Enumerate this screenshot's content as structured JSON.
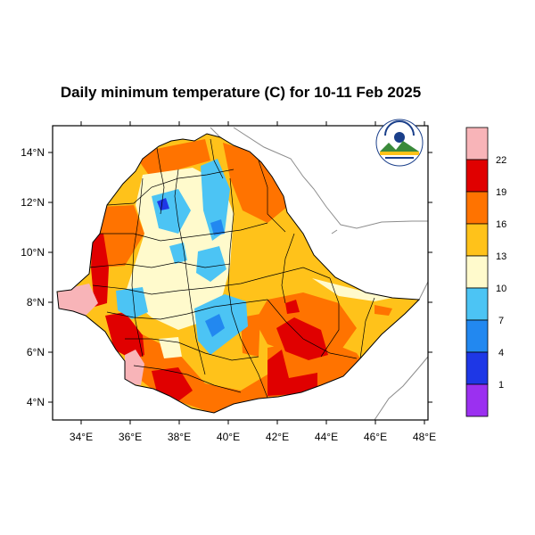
{
  "title": "Daily minimum temperature (C) for 10-11 Feb 2025",
  "map": {
    "lon_ticks": [
      "34°E",
      "36°E",
      "38°E",
      "40°E",
      "42°E",
      "44°E",
      "46°E",
      "48°E"
    ],
    "lat_ticks": [
      "14°N",
      "12°N",
      "10°N",
      "8°N",
      "6°N",
      "4°N"
    ],
    "logo_icon": "ethiopian-meteorology-institute-logo"
  },
  "colorbar": {
    "labels": [
      "22",
      "19",
      "16",
      "13",
      "10",
      "7",
      "4",
      "1"
    ],
    "colors": [
      "#F8B4B8",
      "#E00000",
      "#FF7300",
      "#FFC21A",
      "#FFFACC",
      "#4CC4F4",
      "#2288F0",
      "#1E37E6",
      "#9B30F0"
    ]
  },
  "palette": {
    "pink": "#F8B4B8",
    "red": "#E00000",
    "orange": "#FF7300",
    "amber": "#FFC21A",
    "cream": "#FFFACC",
    "lightblue": "#4CC4F4",
    "blue": "#2288F0"
  }
}
